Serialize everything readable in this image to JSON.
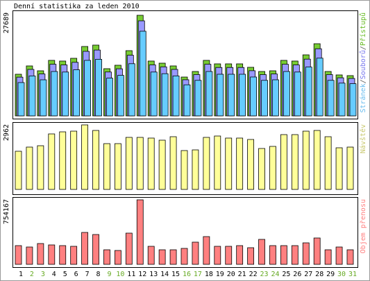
{
  "chart_data": [
    {
      "type": "bar",
      "title": "Denní statistika za leden 2010",
      "ylim": [
        0,
        27689
      ],
      "yticks": [
        27689
      ],
      "legend_separator": "/",
      "series": [
        {
          "name": "Stránek",
          "color": "#66ccff",
          "legend_color": "#66bbee",
          "values": [
            9170,
            11000,
            9930,
            12220,
            12070,
            12680,
            15280,
            15580,
            10390,
            11150,
            14360,
            23300,
            12070,
            11610,
            11000,
            8550,
            9780,
            12220,
            11460,
            11460,
            11460,
            10700,
            9780,
            9930,
            12220,
            12070,
            13440,
            15890,
            9780,
            9020,
            8860
          ]
        },
        {
          "name": "Souborů",
          "color": "#9999ff",
          "legend_color": "#7777ee",
          "values": [
            10660,
            12790,
            11540,
            14210,
            14030,
            14740,
            17760,
            18120,
            12080,
            12960,
            16690,
            26160,
            14030,
            13490,
            12790,
            9940,
            11360,
            14210,
            13320,
            13320,
            13320,
            12430,
            11360,
            11540,
            14210,
            14030,
            15620,
            18470,
            11360,
            10480,
            10300
          ]
        },
        {
          "name": "Přístupů",
          "color": "#77cc33",
          "legend_color": "#66bb22",
          "values": [
            11460,
            13750,
            12410,
            15280,
            15090,
            15850,
            19100,
            19480,
            12990,
            13940,
            17950,
            27689,
            15090,
            14510,
            13750,
            10690,
            12220,
            15280,
            14320,
            14320,
            14320,
            13370,
            12220,
            12410,
            15280,
            15090,
            16800,
            19860,
            12220,
            11270,
            11080
          ]
        }
      ]
    },
    {
      "type": "bar",
      "ylim": [
        0,
        2962
      ],
      "yticks": [
        2962
      ],
      "series": [
        {
          "name": "Návštěv",
          "color": "#ffff99",
          "legend_color": "#c8c86e",
          "values": [
            1752,
            1943,
            2006,
            2548,
            2643,
            2675,
            2962,
            2707,
            2102,
            2102,
            2389,
            2389,
            2357,
            2261,
            2420,
            1784,
            1815,
            2389,
            2452,
            2357,
            2357,
            2293,
            1879,
            1975,
            2516,
            2516,
            2675,
            2707,
            2420,
            1911,
            1943
          ]
        }
      ]
    },
    {
      "type": "bar",
      "ylim": [
        0,
        754167
      ],
      "yticks": [
        754167
      ],
      "categories": [
        "1",
        "2",
        "3",
        "4",
        "5",
        "6",
        "7",
        "8",
        "9",
        "10",
        "11",
        "12",
        "13",
        "14",
        "15",
        "16",
        "17",
        "18",
        "19",
        "20",
        "21",
        "22",
        "23",
        "24",
        "25",
        "26",
        "27",
        "28",
        "29",
        "30",
        "31"
      ],
      "category_colors": [
        "#000000",
        "#66aa22",
        "#66aa22",
        "#000000",
        "#000000",
        "#000000",
        "#000000",
        "#000000",
        "#66aa22",
        "#66aa22",
        "#000000",
        "#000000",
        "#000000",
        "#000000",
        "#000000",
        "#66aa22",
        "#66aa22",
        "#000000",
        "#000000",
        "#000000",
        "#000000",
        "#000000",
        "#66aa22",
        "#66aa22",
        "#000000",
        "#000000",
        "#000000",
        "#000000",
        "#000000",
        "#66aa22",
        "#66aa22"
      ],
      "series": [
        {
          "name": "Objem přenosu",
          "color": "#ff8080",
          "legend_color": "#ff8080",
          "values": [
            218950,
            202700,
            243280,
            227060,
            218950,
            210840,
            373030,
            348700,
            170290,
            162190,
            364920,
            754167,
            210840,
            170290,
            170290,
            186520,
            259500,
            324370,
            210840,
            210840,
            218950,
            194620,
            291940,
            218950,
            218950,
            218950,
            251390,
            308150,
            170290,
            202730,
            170290
          ]
        }
      ]
    }
  ]
}
